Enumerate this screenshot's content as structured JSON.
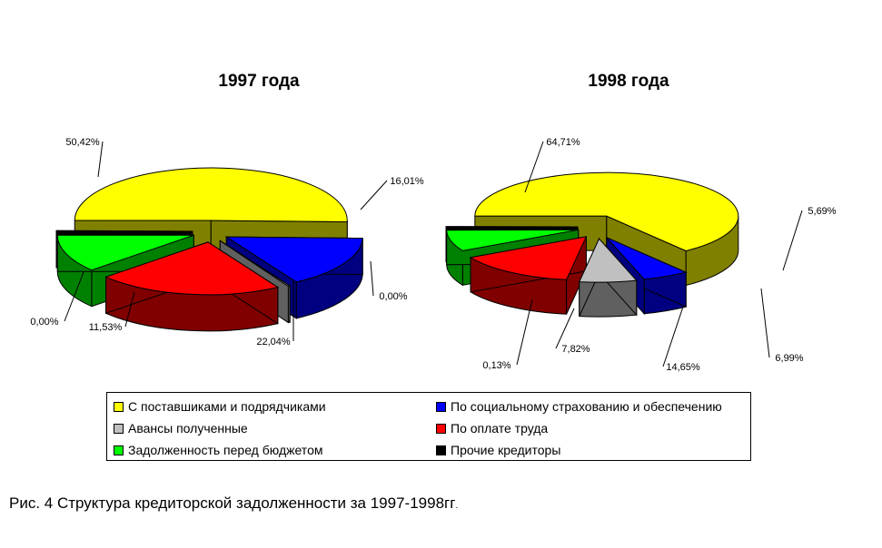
{
  "caption": {
    "text": "Рис. 4 Структура кредиторской задолженности за 1997-1998гг",
    "trailing_dot": "."
  },
  "legend": {
    "items": [
      {
        "label": "С поставшиками и подрядчиками",
        "color": "#ffff00"
      },
      {
        "label": "По социальному страхованию и обеспечению",
        "color": "#0000ff"
      },
      {
        "label": "Авансы полученные",
        "color": "#c0c0c0"
      },
      {
        "label": "По оплате труда",
        "color": "#ff0000"
      },
      {
        "label": "Задолженность перед бюджетом",
        "color": "#00ff00"
      },
      {
        "label": "Прочие кредиторы",
        "color": "#000000"
      }
    ]
  },
  "chart_data": [
    {
      "type": "pie",
      "style": "3d-exploded",
      "title": "1997 года",
      "categories": [
        "С поставшиками и подрядчиками",
        "По социальному страхованию и обеспечению",
        "Авансы полученные",
        "По оплате труда",
        "Задолженность перед бюджетом",
        "Прочие кредиторы"
      ],
      "values": [
        50.42,
        16.01,
        0.0,
        22.04,
        11.53,
        0.0
      ],
      "labels": [
        "50,42%",
        "16,01%",
        "0,00%",
        "22,04%",
        "11,53%",
        "0,00%"
      ],
      "colors": [
        "#ffff00",
        "#0000ff",
        "#c0c0c0",
        "#ff0000",
        "#00ff00",
        "#000000"
      ]
    },
    {
      "type": "pie",
      "style": "3d-exploded",
      "title": "1998 года",
      "categories": [
        "С поставшиками и подрядчиками",
        "По социальному страхованию и обеспечению",
        "Авансы полученные",
        "По оплате труда",
        "Задолженность перед бюджетом",
        "Прочие кредиторы"
      ],
      "values": [
        64.71,
        5.69,
        6.99,
        14.65,
        7.82,
        0.13
      ],
      "labels": [
        "64,71%",
        "5,69%",
        "6,99%",
        "14,65%",
        "7,82%",
        "0,13%"
      ],
      "colors": [
        "#ffff00",
        "#0000ff",
        "#c0c0c0",
        "#ff0000",
        "#00ff00",
        "#000000"
      ]
    }
  ]
}
